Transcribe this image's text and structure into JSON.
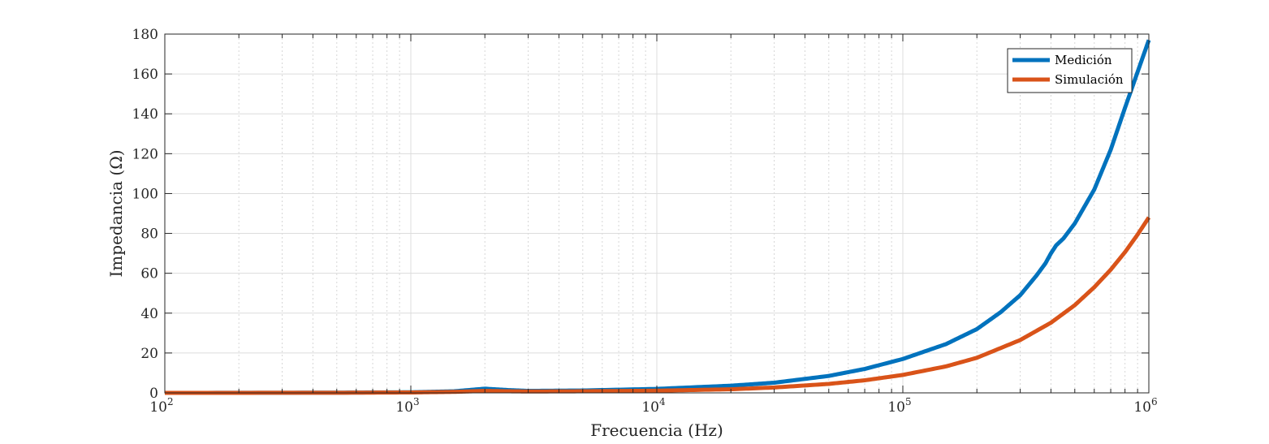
{
  "chart_data": {
    "type": "line",
    "xscale": "log",
    "xlim": [
      100,
      1000000
    ],
    "ylim": [
      0,
      180
    ],
    "xlabel": "Frecuencia (Hz)",
    "ylabel": "Impedancia (Ω)",
    "xticks": [
      {
        "value": 100,
        "base": "10",
        "exp": "2"
      },
      {
        "value": 1000,
        "base": "10",
        "exp": "3"
      },
      {
        "value": 10000,
        "base": "10",
        "exp": "4"
      },
      {
        "value": 100000,
        "base": "10",
        "exp": "5"
      },
      {
        "value": 1000000,
        "base": "10",
        "exp": "6"
      }
    ],
    "yticks": [
      0,
      20,
      40,
      60,
      80,
      100,
      120,
      140,
      160,
      180
    ],
    "grid": true,
    "legend_position": "top-right",
    "series": [
      {
        "name": "Medición",
        "color": "#0072BD",
        "x": [
          100,
          500,
          1000,
          1500,
          2000,
          2500,
          3000,
          5000,
          10000,
          20000,
          30000,
          50000,
          70000,
          100000,
          150000,
          200000,
          250000,
          300000,
          350000,
          380000,
          400000,
          420000,
          450000,
          500000,
          600000,
          700000,
          800000,
          900000,
          1000000
        ],
        "y": [
          0,
          0.1,
          0.3,
          0.8,
          2.1,
          1.4,
          1.0,
          1.2,
          2.0,
          3.6,
          5.1,
          8.5,
          12,
          17,
          24.5,
          32,
          40.5,
          49,
          59,
          65,
          70,
          74,
          77.5,
          85,
          102,
          122,
          143,
          161,
          177
        ]
      },
      {
        "name": "Simulación",
        "color": "#D95319",
        "x": [
          100,
          500,
          1000,
          1500,
          2000,
          2500,
          3000,
          5000,
          10000,
          20000,
          30000,
          50000,
          70000,
          100000,
          150000,
          200000,
          300000,
          400000,
          500000,
          600000,
          700000,
          800000,
          900000,
          1000000
        ],
        "y": [
          0,
          0.05,
          0.2,
          0.5,
          1.0,
          0.8,
          0.7,
          0.8,
          1.1,
          1.8,
          2.7,
          4.5,
          6.3,
          9.0,
          13.3,
          17.6,
          26.5,
          35.2,
          44,
          53,
          61.8,
          70.6,
          79.4,
          88
        ]
      }
    ]
  }
}
